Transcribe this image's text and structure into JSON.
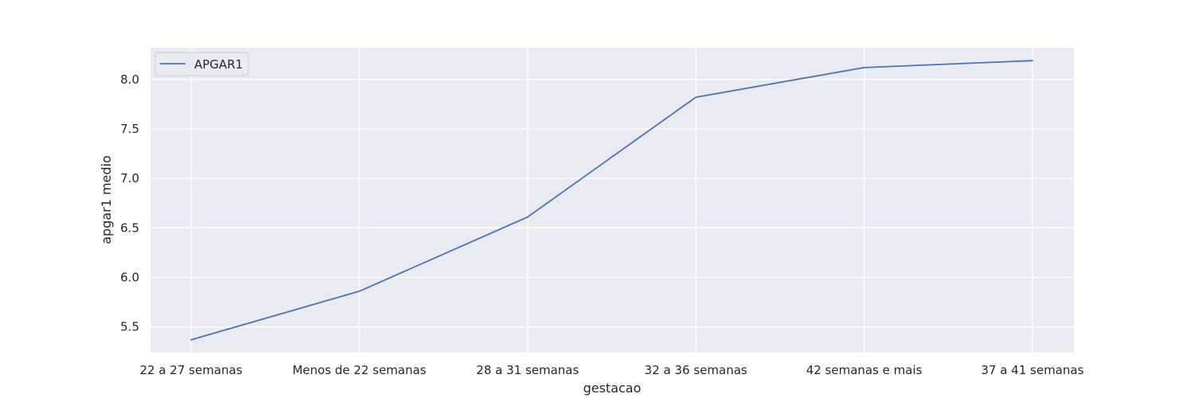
{
  "chart_data": {
    "type": "line",
    "categories": [
      "22 a 27 semanas",
      "Menos de 22 semanas",
      "28 a 31 semanas",
      "32 a 36 semanas",
      "42 semanas e mais",
      "37 a 41 semanas"
    ],
    "series": [
      {
        "name": "APGAR1",
        "values": [
          5.37,
          5.86,
          6.61,
          7.82,
          8.12,
          8.19
        ],
        "color": "#4c72b0"
      }
    ],
    "xlabel": "gestacao",
    "ylabel": "apgar1 medio",
    "ylim": [
      5.24,
      8.32
    ],
    "yticks": [
      "5.5",
      "6.0",
      "6.5",
      "7.0",
      "7.5",
      "8.0"
    ],
    "grid": true,
    "legend": "top-left",
    "colors": {
      "background": "#eaeaf2",
      "grid": "#ffffff",
      "text": "#262626"
    }
  }
}
